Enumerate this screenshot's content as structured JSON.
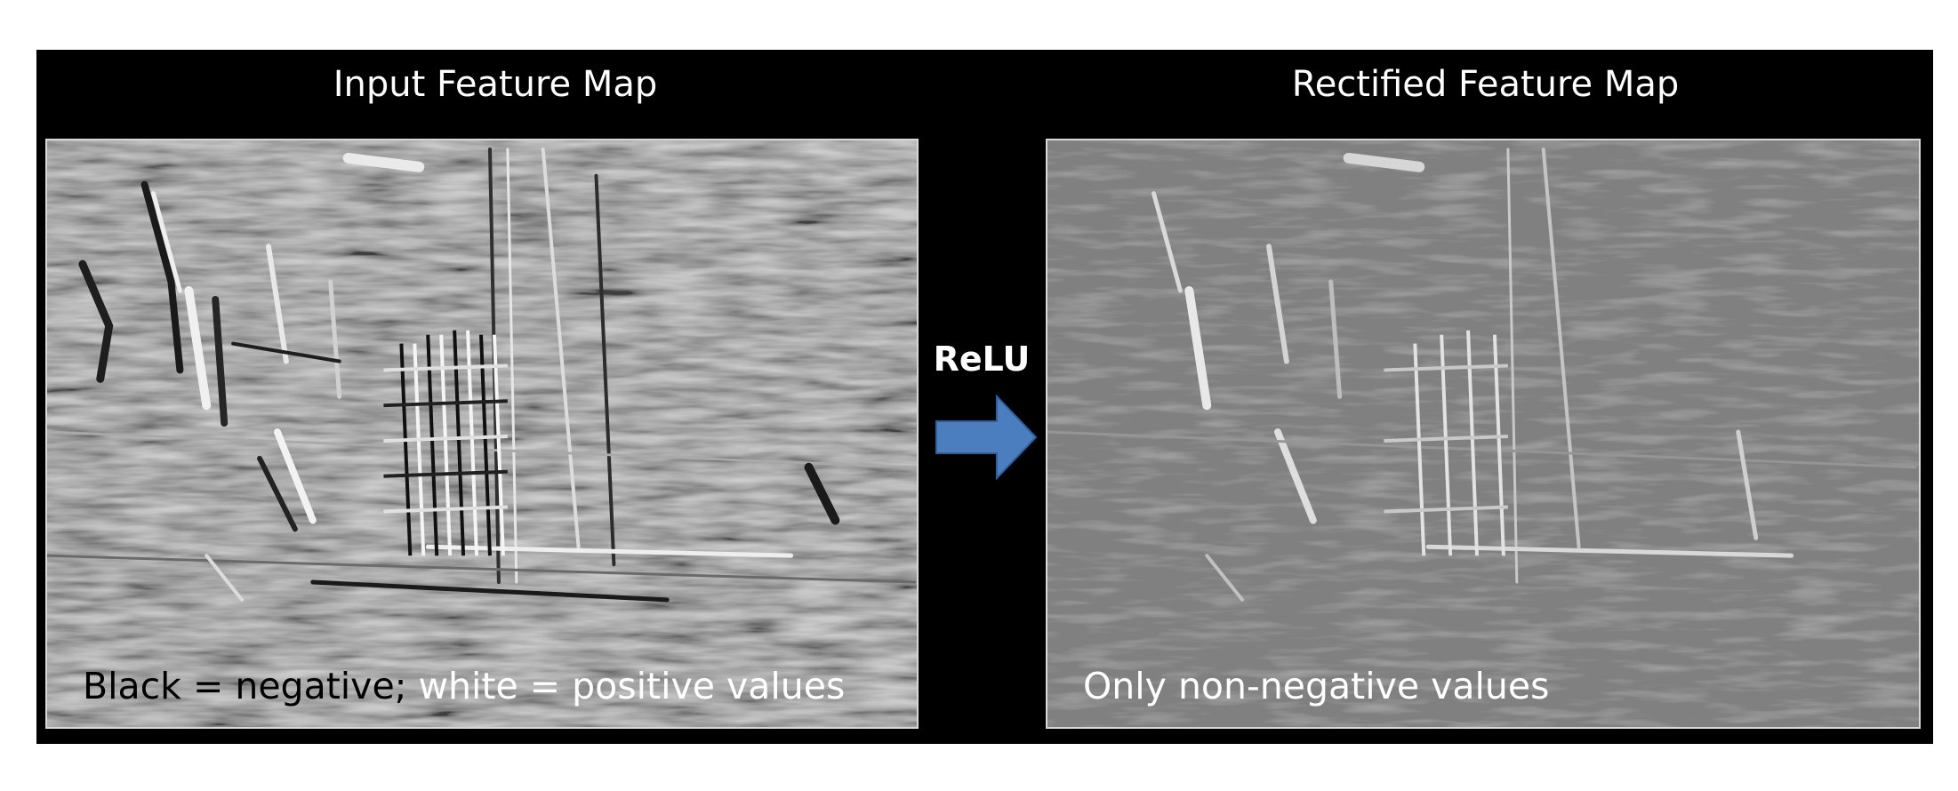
{
  "left_panel": {
    "title": "Input Feature Map",
    "caption_negative": "Black = negative;",
    "caption_positive": " white = positive values"
  },
  "right_panel": {
    "title": "Rectified Feature Map",
    "caption": "Only non-negative values"
  },
  "operation": {
    "label": "ReLU",
    "arrow_color": "#4a7ebf"
  },
  "colors": {
    "background": "#000000",
    "input_map_base": "#8c8c8c",
    "rectified_map_base": "#808080"
  }
}
